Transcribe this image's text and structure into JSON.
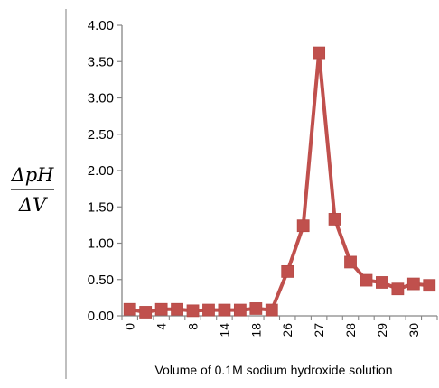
{
  "chart_data": {
    "type": "line",
    "title": "",
    "xlabel": "Volume of 0.1M sodium hydroxide solution",
    "ylabel": {
      "numerator": "ΔpH",
      "denominator": "ΔV"
    },
    "x_tick_labels": [
      "0",
      "4",
      "8",
      "14",
      "18",
      "26",
      "27",
      "28",
      "29",
      "30"
    ],
    "ylim": [
      0,
      4
    ],
    "y_ticks": [
      "0.00",
      "0.50",
      "1.00",
      "1.50",
      "2.00",
      "2.50",
      "3.00",
      "3.50",
      "4.00"
    ],
    "grid": false,
    "legend": "none",
    "marker": "square",
    "series": [
      {
        "color": "#c0504d",
        "values": [
          0.09,
          0.05,
          0.09,
          0.09,
          0.07,
          0.08,
          0.08,
          0.08,
          0.1,
          0.08,
          0.61,
          1.24,
          3.62,
          1.33,
          0.74,
          0.49,
          0.46,
          0.37,
          0.44,
          0.42
        ]
      }
    ]
  }
}
